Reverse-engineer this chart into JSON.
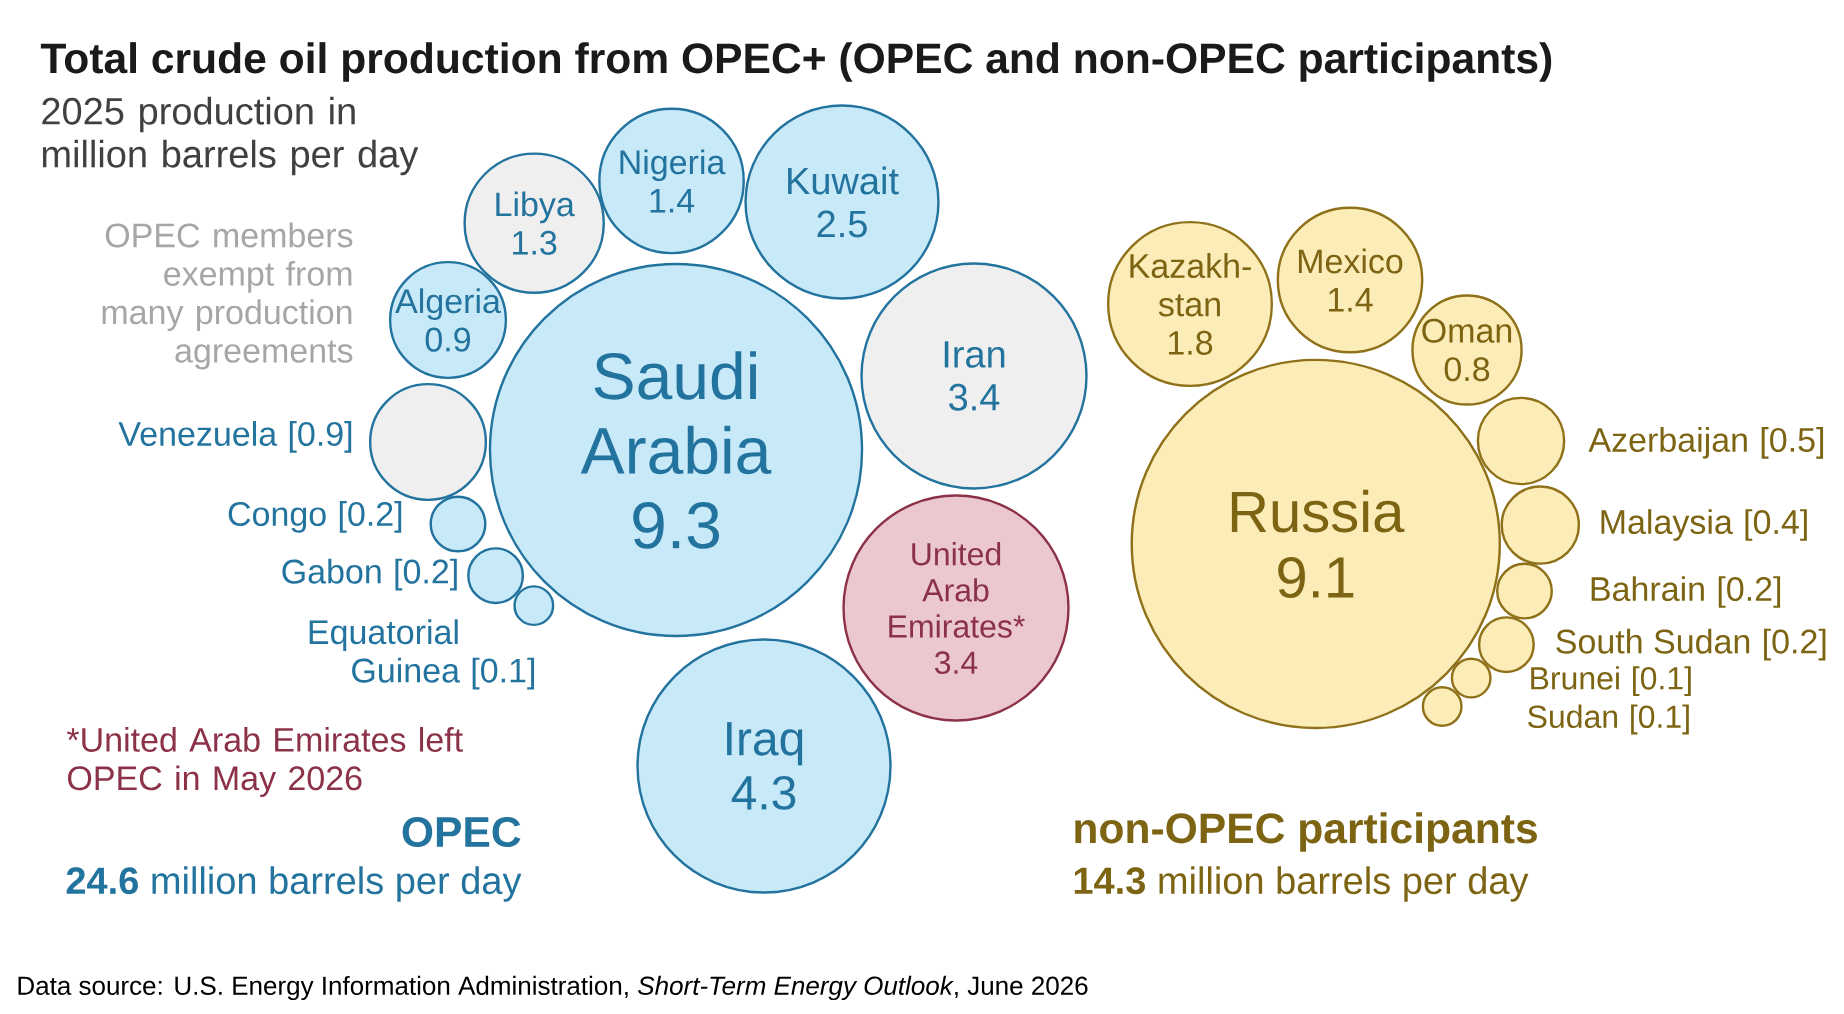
{
  "chart_data": {
    "type": "other",
    "title": "Total crude oil production from OPEC+ (OPEC and non-OPEC participants)",
    "subtitle": "2025 production in million barrels per day",
    "categories": [
      "Saudi Arabia",
      "Iraq",
      "United Arab Emirates*",
      "Iran",
      "Kuwait",
      "Nigeria",
      "Libya",
      "Algeria",
      "Venezuela",
      "Congo",
      "Gabon",
      "Equatorial Guinea",
      "Russia",
      "Kazakh-stan",
      "Mexico",
      "Oman",
      "Azerbaijan",
      "Malaysia",
      "Bahrain",
      "South Sudan",
      "Brunei",
      "Sudan"
    ],
    "series": [
      {
        "name": "OPEC",
        "color": "#c7e9f8",
        "values": [
          9.3,
          4.3,
          null,
          null,
          2.5,
          1.4,
          null,
          0.9,
          null,
          0.2,
          0.2,
          0.1,
          null,
          null,
          null,
          null,
          null,
          null,
          null,
          null,
          null,
          null
        ],
        "value_labels": [
          "9.3",
          "4.3",
          null,
          null,
          "2.5",
          "1.4",
          null,
          "0.9",
          null,
          "[0.2]",
          "[0.2]",
          "[0.1]",
          null,
          null,
          null,
          null,
          null,
          null,
          null,
          null,
          null,
          null
        ]
      },
      {
        "color": "#efefef",
        "values": [
          null,
          null,
          null,
          3.4,
          null,
          null,
          1.3,
          null,
          0.9,
          null,
          null,
          null,
          null,
          null,
          null,
          null,
          null,
          null,
          null,
          null,
          null,
          null
        ],
        "value_labels": [
          null,
          null,
          null,
          "3.4",
          null,
          null,
          "1.3",
          null,
          "[0.9]",
          null,
          null,
          null,
          null,
          null,
          null,
          null,
          null,
          null,
          null,
          null,
          null,
          null
        ]
      },
      {
        "color": "#ebc8d0",
        "values": [
          null,
          null,
          3.4,
          null,
          null,
          null,
          null,
          null,
          null,
          null,
          null,
          null,
          null,
          null,
          null,
          null,
          null,
          null,
          null,
          null,
          null,
          null
        ],
        "value_labels": [
          null,
          null,
          "3.4",
          null,
          null,
          null,
          null,
          null,
          null,
          null,
          null,
          null,
          null,
          null,
          null,
          null,
          null,
          null,
          null,
          null,
          null,
          null
        ]
      },
      {
        "name": "non-OPEC participants",
        "color": "#fbecb8",
        "values": [
          null,
          null,
          null,
          null,
          null,
          null,
          null,
          null,
          null,
          null,
          null,
          null,
          9.1,
          1.8,
          1.4,
          0.8,
          0.5,
          0.4,
          0.2,
          0.2,
          0.1,
          0.1
        ],
        "value_labels": [
          null,
          null,
          null,
          null,
          null,
          null,
          null,
          null,
          null,
          null,
          null,
          null,
          "9.1",
          "1.8",
          "1.4",
          "0.8",
          "[0.5]",
          "[0.4]",
          "[0.2]",
          "[0.2]",
          "[0.1]",
          "[0.1]"
        ]
      }
    ],
    "annotations": [
      "OPEC members exempt from many production agreements",
      "*United Arab Emirates left OPEC in May 2026",
      "**24.6** million barrels per day",
      "**14.3** million barrels per day",
      "Data source: U.S. Energy Information Administration, *Short-Term Energy Outlook*, June 2026"
    ]
  }
}
